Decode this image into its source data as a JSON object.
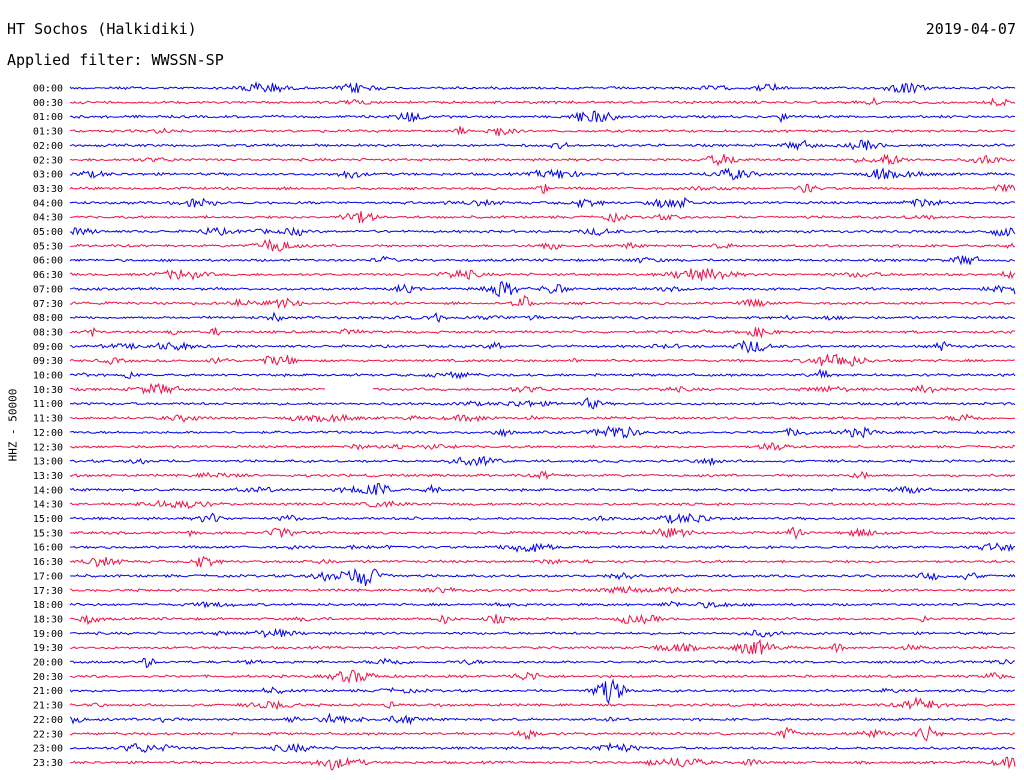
{
  "header": {
    "station": "HT Sochos (Halkidiki)",
    "date": "2019-04-07",
    "filter": "Applied filter: WWSSN-SP"
  },
  "chart_data": {
    "type": "helicorder",
    "channel_label": "HHZ - 50000",
    "row_times": [
      "00:00",
      "00:30",
      "01:00",
      "01:30",
      "02:00",
      "02:30",
      "03:00",
      "03:30",
      "04:00",
      "04:30",
      "05:00",
      "05:30",
      "06:00",
      "06:30",
      "07:00",
      "07:30",
      "08:00",
      "08:30",
      "09:00",
      "09:30",
      "10:00",
      "10:30",
      "11:00",
      "11:30",
      "12:00",
      "12:30",
      "13:00",
      "13:30",
      "14:00",
      "14:30",
      "15:00",
      "15:30",
      "16:00",
      "16:30",
      "17:00",
      "17:30",
      "18:00",
      "18:30",
      "19:00",
      "19:30",
      "20:00",
      "20:30",
      "21:00",
      "21:30",
      "22:00",
      "22:30",
      "23:00",
      "23:30"
    ],
    "trace_colors": [
      "#0000ee",
      "#ee1144"
    ],
    "gap": {
      "row": "10:30",
      "start_fraction": 0.27,
      "end_fraction": 0.32
    }
  }
}
